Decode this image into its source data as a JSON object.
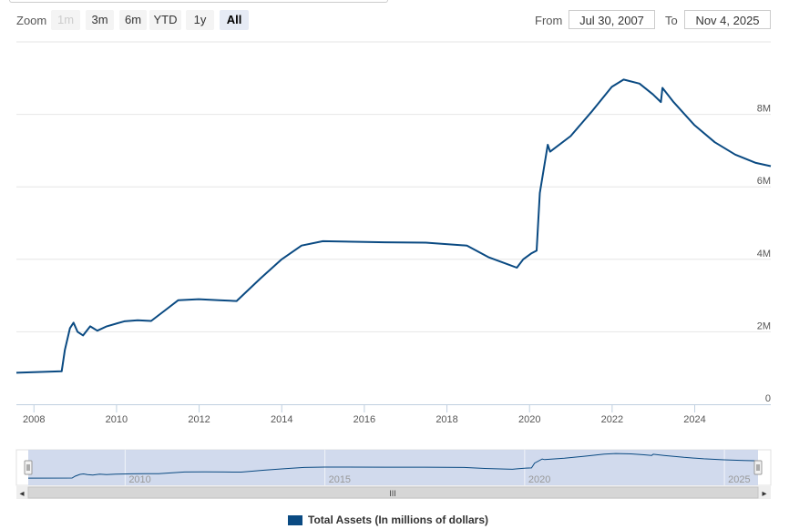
{
  "zoom": {
    "label": "Zoom",
    "buttons": [
      {
        "label": "1m",
        "state": "disabled"
      },
      {
        "label": "3m",
        "state": "normal"
      },
      {
        "label": "6m",
        "state": "normal"
      },
      {
        "label": "YTD",
        "state": "normal"
      },
      {
        "label": "1y",
        "state": "normal"
      },
      {
        "label": "All",
        "state": "selected"
      }
    ]
  },
  "range": {
    "from_label": "From",
    "from_value": "Jul 30, 2007",
    "to_label": "To",
    "to_value": "Nov 4, 2025"
  },
  "colors": {
    "series": "#0a4a82",
    "navigator_fill": "#c9d3ea",
    "grid": "#e6e6e6"
  },
  "navigator": {
    "tick_labels": [
      "2010",
      "2015",
      "2020",
      "2025"
    ],
    "scrollbar_grip": "III",
    "left_arrow": "◂",
    "right_arrow": "▸"
  },
  "chart_data": {
    "type": "line",
    "title": "",
    "xlabel": "",
    "ylabel": "",
    "xlim": [
      "2007-07-30",
      "2025-11-04"
    ],
    "ylim": [
      0,
      10000000
    ],
    "y_ticks": [
      0,
      2000000,
      4000000,
      6000000,
      8000000
    ],
    "y_tick_labels": [
      "0",
      "2M",
      "4M",
      "6M",
      "8M"
    ],
    "x_tick_labels": [
      "2008",
      "2010",
      "2012",
      "2014",
      "2016",
      "2018",
      "2020",
      "2022",
      "2024"
    ],
    "grid": "horizontal",
    "legend_position": "bottom-center",
    "series": [
      {
        "name": "Total Assets (In millions of dollars)",
        "points": [
          [
            "2007-07-30",
            870000
          ],
          [
            "2008-09-03",
            910000
          ],
          [
            "2008-10-01",
            1500000
          ],
          [
            "2008-11-15",
            2100000
          ],
          [
            "2008-12-17",
            2250000
          ],
          [
            "2009-01-21",
            2000000
          ],
          [
            "2009-03-11",
            1900000
          ],
          [
            "2009-05-13",
            2150000
          ],
          [
            "2009-07-15",
            2030000
          ],
          [
            "2009-10-07",
            2150000
          ],
          [
            "2010-03-10",
            2290000
          ],
          [
            "2010-07-07",
            2320000
          ],
          [
            "2010-11-03",
            2300000
          ],
          [
            "2011-03-09",
            2600000
          ],
          [
            "2011-06-29",
            2870000
          ],
          [
            "2011-12-28",
            2900000
          ],
          [
            "2012-06-27",
            2870000
          ],
          [
            "2012-11-28",
            2850000
          ],
          [
            "2013-06-26",
            3470000
          ],
          [
            "2014-01-01",
            4000000
          ],
          [
            "2014-06-25",
            4380000
          ],
          [
            "2014-12-31",
            4500000
          ],
          [
            "2016-06-29",
            4470000
          ],
          [
            "2017-06-28",
            4460000
          ],
          [
            "2018-06-27",
            4380000
          ],
          [
            "2019-01-02",
            4060000
          ],
          [
            "2019-06-26",
            3860000
          ],
          [
            "2019-09-11",
            3770000
          ],
          [
            "2019-11-06",
            4000000
          ],
          [
            "2020-01-15",
            4160000
          ],
          [
            "2020-03-04",
            4240000
          ],
          [
            "2020-04-01",
            5830000
          ],
          [
            "2020-06-10",
            7160000
          ],
          [
            "2020-07-01",
            6970000
          ],
          [
            "2020-12-30",
            7400000
          ],
          [
            "2021-06-30",
            8060000
          ],
          [
            "2021-12-29",
            8760000
          ],
          [
            "2022-04-13",
            8960000
          ],
          [
            "2022-08-31",
            8850000
          ],
          [
            "2022-12-28",
            8550000
          ],
          [
            "2023-03-08",
            8340000
          ],
          [
            "2023-03-22",
            8730000
          ],
          [
            "2023-06-28",
            8340000
          ],
          [
            "2023-12-27",
            7710000
          ],
          [
            "2024-06-26",
            7230000
          ],
          [
            "2024-12-25",
            6890000
          ],
          [
            "2025-06-25",
            6660000
          ],
          [
            "2025-11-04",
            6570000
          ]
        ]
      }
    ]
  }
}
